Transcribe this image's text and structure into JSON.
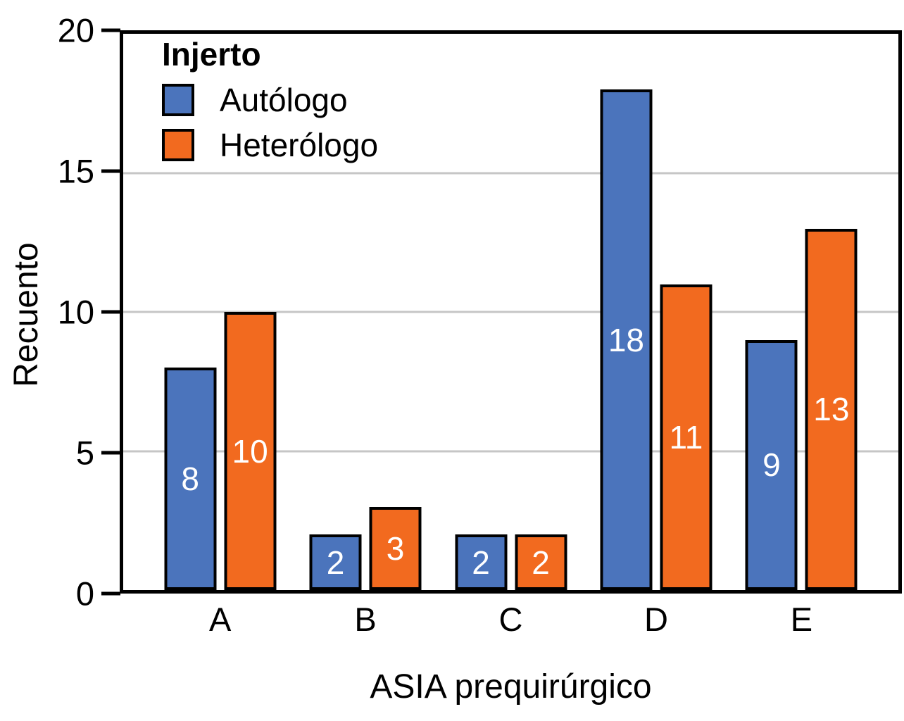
{
  "chart_data": {
    "type": "bar",
    "title": "",
    "legend_title": "Injerto",
    "categories": [
      "A",
      "B",
      "C",
      "D",
      "E"
    ],
    "series": [
      {
        "name": "Autólogo",
        "color": "#4b74bc",
        "values": [
          8,
          2,
          2,
          18,
          9
        ]
      },
      {
        "name": "Heterólogo",
        "color": "#f26a1f",
        "values": [
          10,
          3,
          2,
          11,
          13
        ]
      }
    ],
    "xlabel": "ASIA prequirúrgico",
    "ylabel": "Recuento",
    "ylim": [
      0,
      20
    ],
    "yticks": [
      20,
      15,
      10,
      5,
      0
    ],
    "gridlines": [
      5,
      10,
      15
    ],
    "grid": "horizontal",
    "legend_position": "inside-top-left",
    "bar_value_labels": "white, centered inside bars"
  },
  "colors": {
    "background": "#ffffff",
    "axis_frame": "#000000",
    "bar_border": "#000000",
    "gridline": "#c6c6c6",
    "bar_value_text": "#ffffff",
    "text": "#000000"
  }
}
